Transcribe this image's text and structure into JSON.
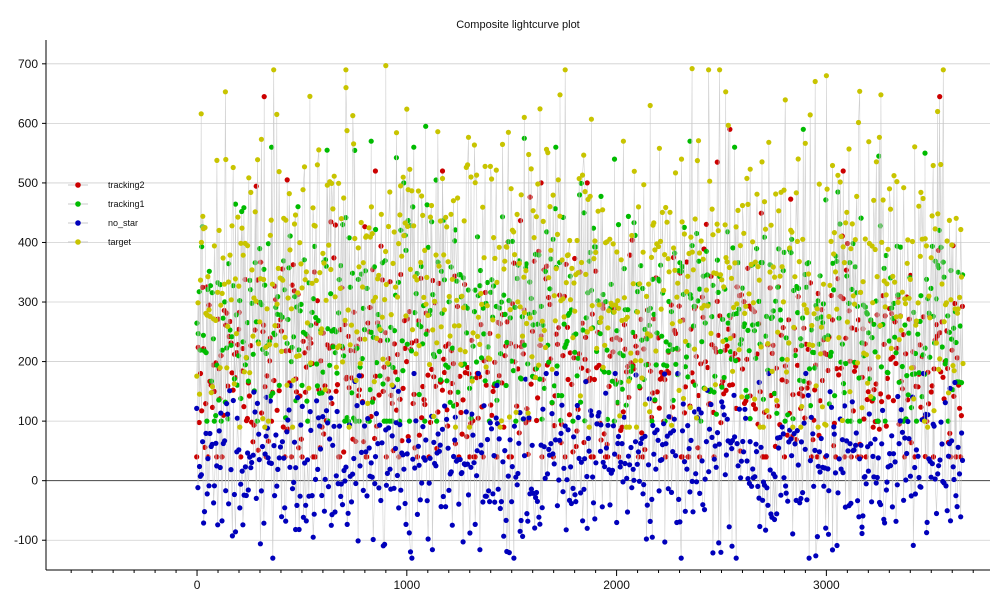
{
  "chart_data": {
    "type": "scatter",
    "title": "Composite lightcurve plot",
    "xlabel": "",
    "ylabel": "",
    "xlim": [
      -720,
      3780
    ],
    "ylim": [
      -150,
      740
    ],
    "x_ticks": [
      0,
      1000,
      2000,
      3000
    ],
    "y_ticks": [
      -100,
      0,
      100,
      200,
      300,
      400,
      500,
      600,
      700
    ],
    "grid": "horizontal",
    "legend_placement": "left",
    "x_range_of_points": [
      0,
      3650
    ],
    "point_density": "approximately one observation per series per unit of x",
    "series": [
      {
        "name": "tracking2",
        "color": "#cc0000",
        "typical_range": [
          60,
          520
        ],
        "typical_center": 190,
        "values": [
          [
            320,
            645
          ],
          [
            3540,
            645
          ],
          [
            2540,
            590
          ],
          [
            2480,
            535
          ],
          [
            1860,
            500
          ],
          [
            1170,
            520
          ],
          [
            850,
            520
          ],
          [
            1640,
            500
          ],
          [
            3080,
            520
          ],
          [
            430,
            505
          ]
        ]
      },
      {
        "name": "tracking1",
        "color": "#00bb00",
        "typical_range": [
          120,
          560
        ],
        "typical_center": 260,
        "values": [
          [
            830,
            570
          ],
          [
            1090,
            595
          ],
          [
            1560,
            575
          ],
          [
            2890,
            590
          ],
          [
            3250,
            545
          ],
          [
            2350,
            570
          ],
          [
            1710,
            560
          ],
          [
            620,
            555
          ],
          [
            3470,
            550
          ],
          [
            1990,
            540
          ]
        ]
      },
      {
        "name": "no_star",
        "color": "#0000bb",
        "typical_range": [
          -110,
          180
        ],
        "typical_center": 30,
        "values": [
          [
            2550,
            -110
          ],
          [
            2230,
            -103
          ],
          [
            2170,
            -95
          ],
          [
            3010,
            -90
          ],
          [
            1540,
            -85
          ],
          [
            470,
            -82
          ],
          [
            1860,
            -80
          ],
          [
            3170,
            -78
          ],
          [
            640,
            -75
          ],
          [
            3480,
            -70
          ],
          [
            960,
            150
          ],
          [
            1430,
            160
          ],
          [
            2680,
            165
          ],
          [
            330,
            140
          ],
          [
            3590,
            155
          ]
        ]
      },
      {
        "name": "target",
        "color": "#c8c400",
        "typical_range": [
          110,
          690
        ],
        "typical_center": 340,
        "values": [
          [
            900,
            697
          ],
          [
            2360,
            692
          ],
          [
            3000,
            680
          ],
          [
            710,
            660
          ],
          [
            135,
            653
          ],
          [
            2520,
            653
          ],
          [
            1730,
            648
          ],
          [
            3260,
            648
          ],
          [
            2160,
            630
          ],
          [
            1000,
            624
          ],
          [
            20,
            616
          ],
          [
            380,
            615
          ],
          [
            1560,
            610
          ],
          [
            1880,
            607
          ],
          [
            3530,
            620
          ]
        ]
      }
    ]
  }
}
